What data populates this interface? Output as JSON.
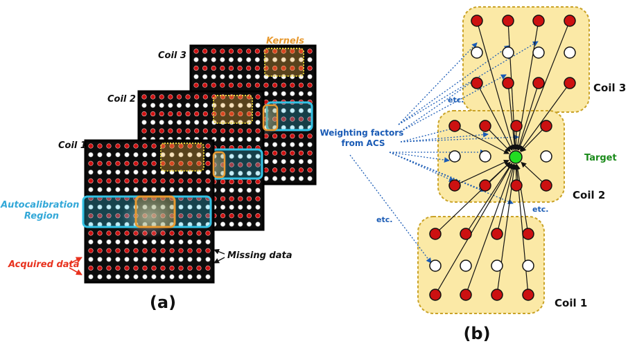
{
  "panel_a": {
    "caption": "(a)",
    "coil_labels": [
      "Coil 1",
      "Coil 2",
      "Coil 3"
    ],
    "kernels_label": "Kernels",
    "acs_label_line1": "Autocalibration",
    "acs_label_line2": "Region",
    "acquired_label": "Acquired data",
    "missing_label": "Missing data"
  },
  "panel_b": {
    "caption": "(b)",
    "coil_labels": [
      "Coil 3",
      "Coil 2",
      "Coil 1"
    ],
    "target_label": "Target",
    "weights_line1": "Weighting factors",
    "weights_line2": "from ACS",
    "etc_label": "etc."
  },
  "colors": {
    "acquired": "#cc1111",
    "missing": "#ffffff",
    "target": "#22dd22",
    "acs": "#33c3e6",
    "kernel": "#e89a30",
    "coil_box": "#fbe9a6",
    "coil_box_border": "#c9a227",
    "weights_text": "#1a5bb5",
    "acquired_text": "#e8321e",
    "target_text": "#1a8a1a"
  }
}
